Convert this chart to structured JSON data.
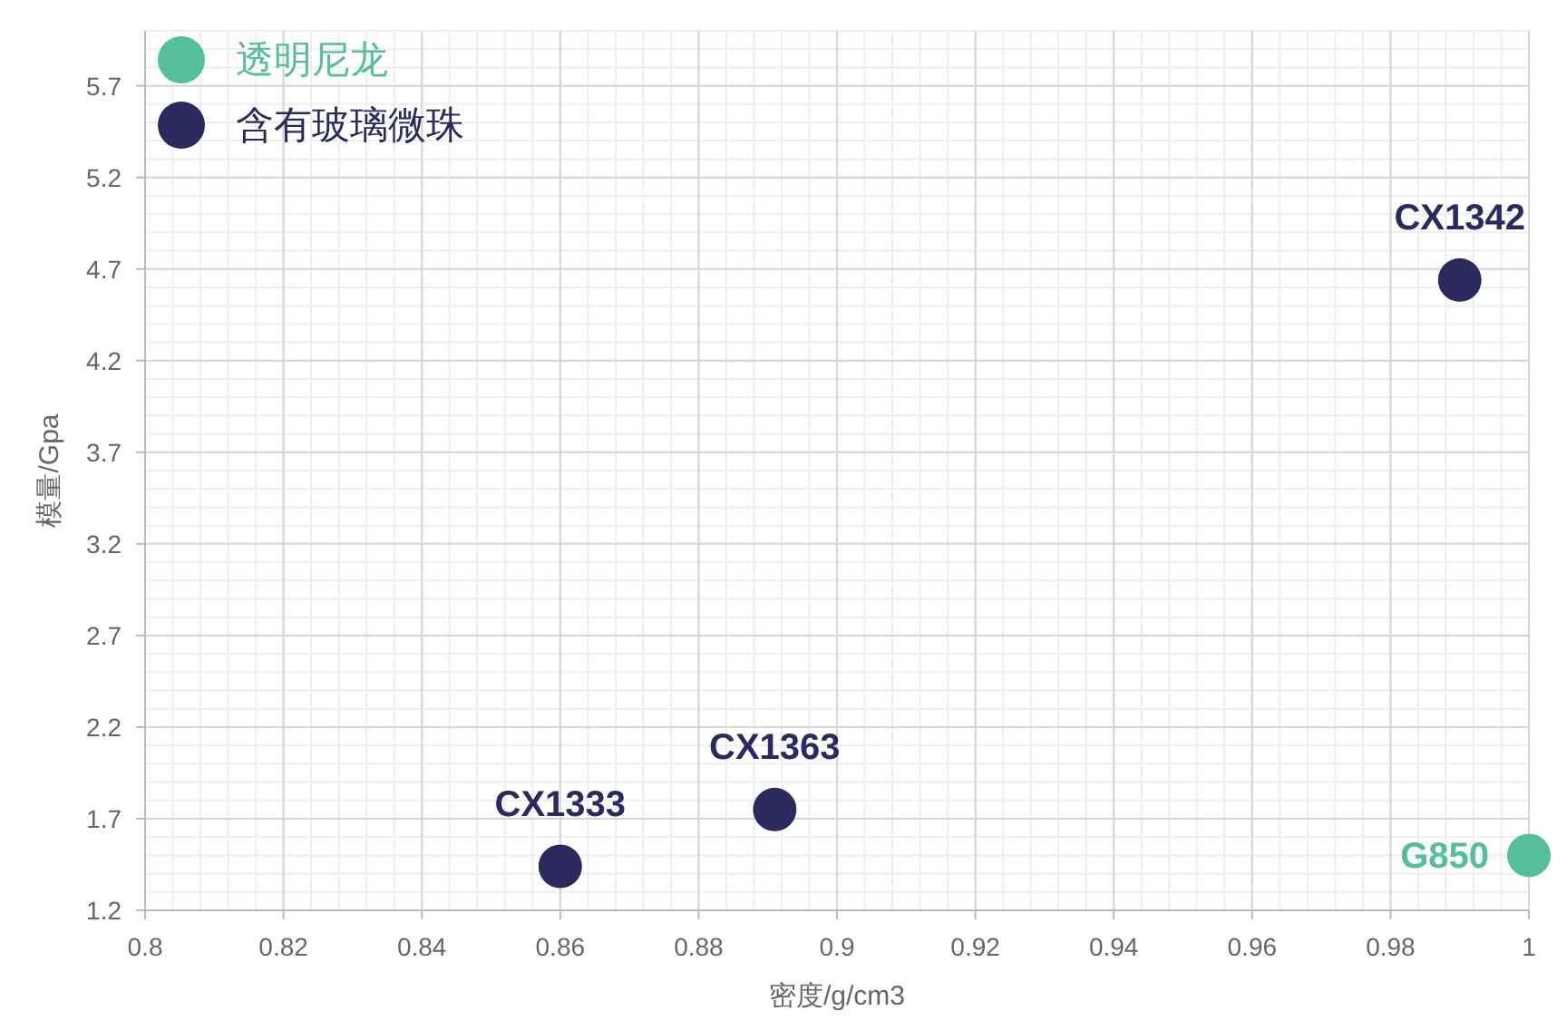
{
  "chart_data": {
    "type": "scatter",
    "xlabel": "密度/g/cm3",
    "ylabel": "模量/Gpa",
    "xlim": [
      0.8,
      1.0
    ],
    "ylim": [
      1.2,
      6.0
    ],
    "xticks": [
      0.8,
      0.82,
      0.84,
      0.86,
      0.88,
      0.9,
      0.92,
      0.94,
      0.96,
      0.98,
      1
    ],
    "yticks": [
      1.2,
      1.7,
      2.2,
      2.7,
      3.2,
      3.7,
      4.2,
      4.7,
      5.2,
      5.7
    ],
    "grid": true,
    "legend": "top left",
    "marker": "circle",
    "series": [
      {
        "name": "透明尼龙",
        "color": "#55be9b",
        "x": [
          1.0
        ],
        "values": [
          1.5
        ]
      },
      {
        "name": "含有玻璃微珠",
        "color": "#2a2a5f",
        "x": [
          0.86,
          0.891,
          0.99
        ],
        "values": [
          1.44,
          1.75,
          4.64
        ]
      }
    ],
    "annotations": [
      {
        "text": "G850",
        "x": 1.0,
        "y": 1.5
      },
      {
        "text": "CX1333",
        "x": 0.86,
        "y": 1.44
      },
      {
        "text": "CX1363",
        "x": 0.891,
        "y": 1.75
      },
      {
        "text": "CX1342",
        "x": 0.99,
        "y": 4.64
      }
    ]
  }
}
